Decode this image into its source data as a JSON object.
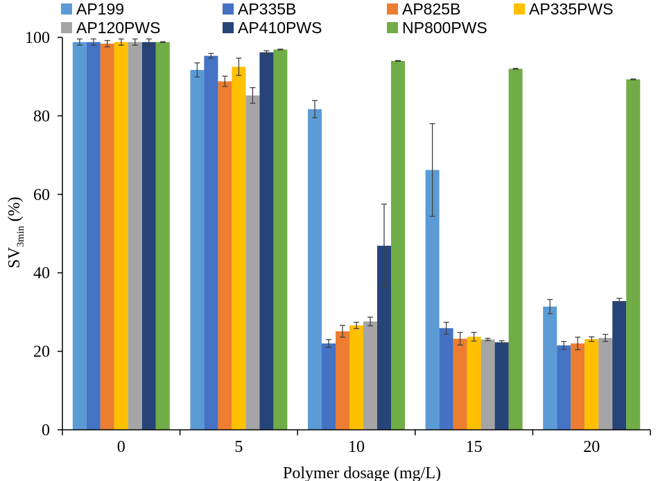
{
  "chart_data": {
    "type": "bar",
    "title": "",
    "xlabel": "Polymer dosage (mg/L)",
    "ylabel_main": "SV",
    "ylabel_sub": "3min",
    "ylabel_suffix": " (%)",
    "ylim": [
      0,
      100
    ],
    "yticks": [
      0,
      20,
      40,
      60,
      80,
      100
    ],
    "categories": [
      "0",
      "5",
      "10",
      "15",
      "20"
    ],
    "legend_position": "top",
    "series": [
      {
        "name": "AP199",
        "color": "#5B9BD5",
        "values": [
          98.8,
          91.7,
          81.7,
          66.2,
          31.4
        ],
        "errors": [
          0.8,
          1.8,
          2.2,
          11.8,
          1.8
        ]
      },
      {
        "name": "AP335B",
        "color": "#4472C4",
        "values": [
          98.8,
          95.3,
          22.0,
          25.9,
          21.5
        ],
        "errors": [
          0.8,
          0.6,
          1.0,
          1.5,
          1.0
        ]
      },
      {
        "name": "AP825B",
        "color": "#ED7D31",
        "values": [
          98.4,
          88.8,
          25.1,
          23.2,
          22.0
        ],
        "errors": [
          0.8,
          1.3,
          1.5,
          1.6,
          1.6
        ]
      },
      {
        "name": "AP335PWS",
        "color": "#FFC000",
        "values": [
          98.8,
          92.5,
          26.6,
          23.7,
          23.1
        ],
        "errors": [
          0.8,
          2.2,
          0.8,
          1.1,
          0.6
        ]
      },
      {
        "name": "AP120PWS",
        "color": "#A5A5A5",
        "values": [
          98.8,
          85.2,
          27.6,
          23.0,
          23.4
        ],
        "errors": [
          0.8,
          2.0,
          1.1,
          0.3,
          0.9
        ]
      },
      {
        "name": "AP410PWS",
        "color": "#264478",
        "values": [
          98.8,
          96.2,
          46.9,
          22.3,
          32.8
        ],
        "errors": [
          0.8,
          0.4,
          10.6,
          0.4,
          0.7
        ]
      },
      {
        "name": "NP800PWS",
        "color": "#70AD47",
        "values": [
          98.8,
          96.9,
          94.0,
          92.0,
          89.3
        ],
        "errors": [
          0.1,
          0.1,
          0.1,
          0.1,
          0.1
        ]
      }
    ]
  }
}
